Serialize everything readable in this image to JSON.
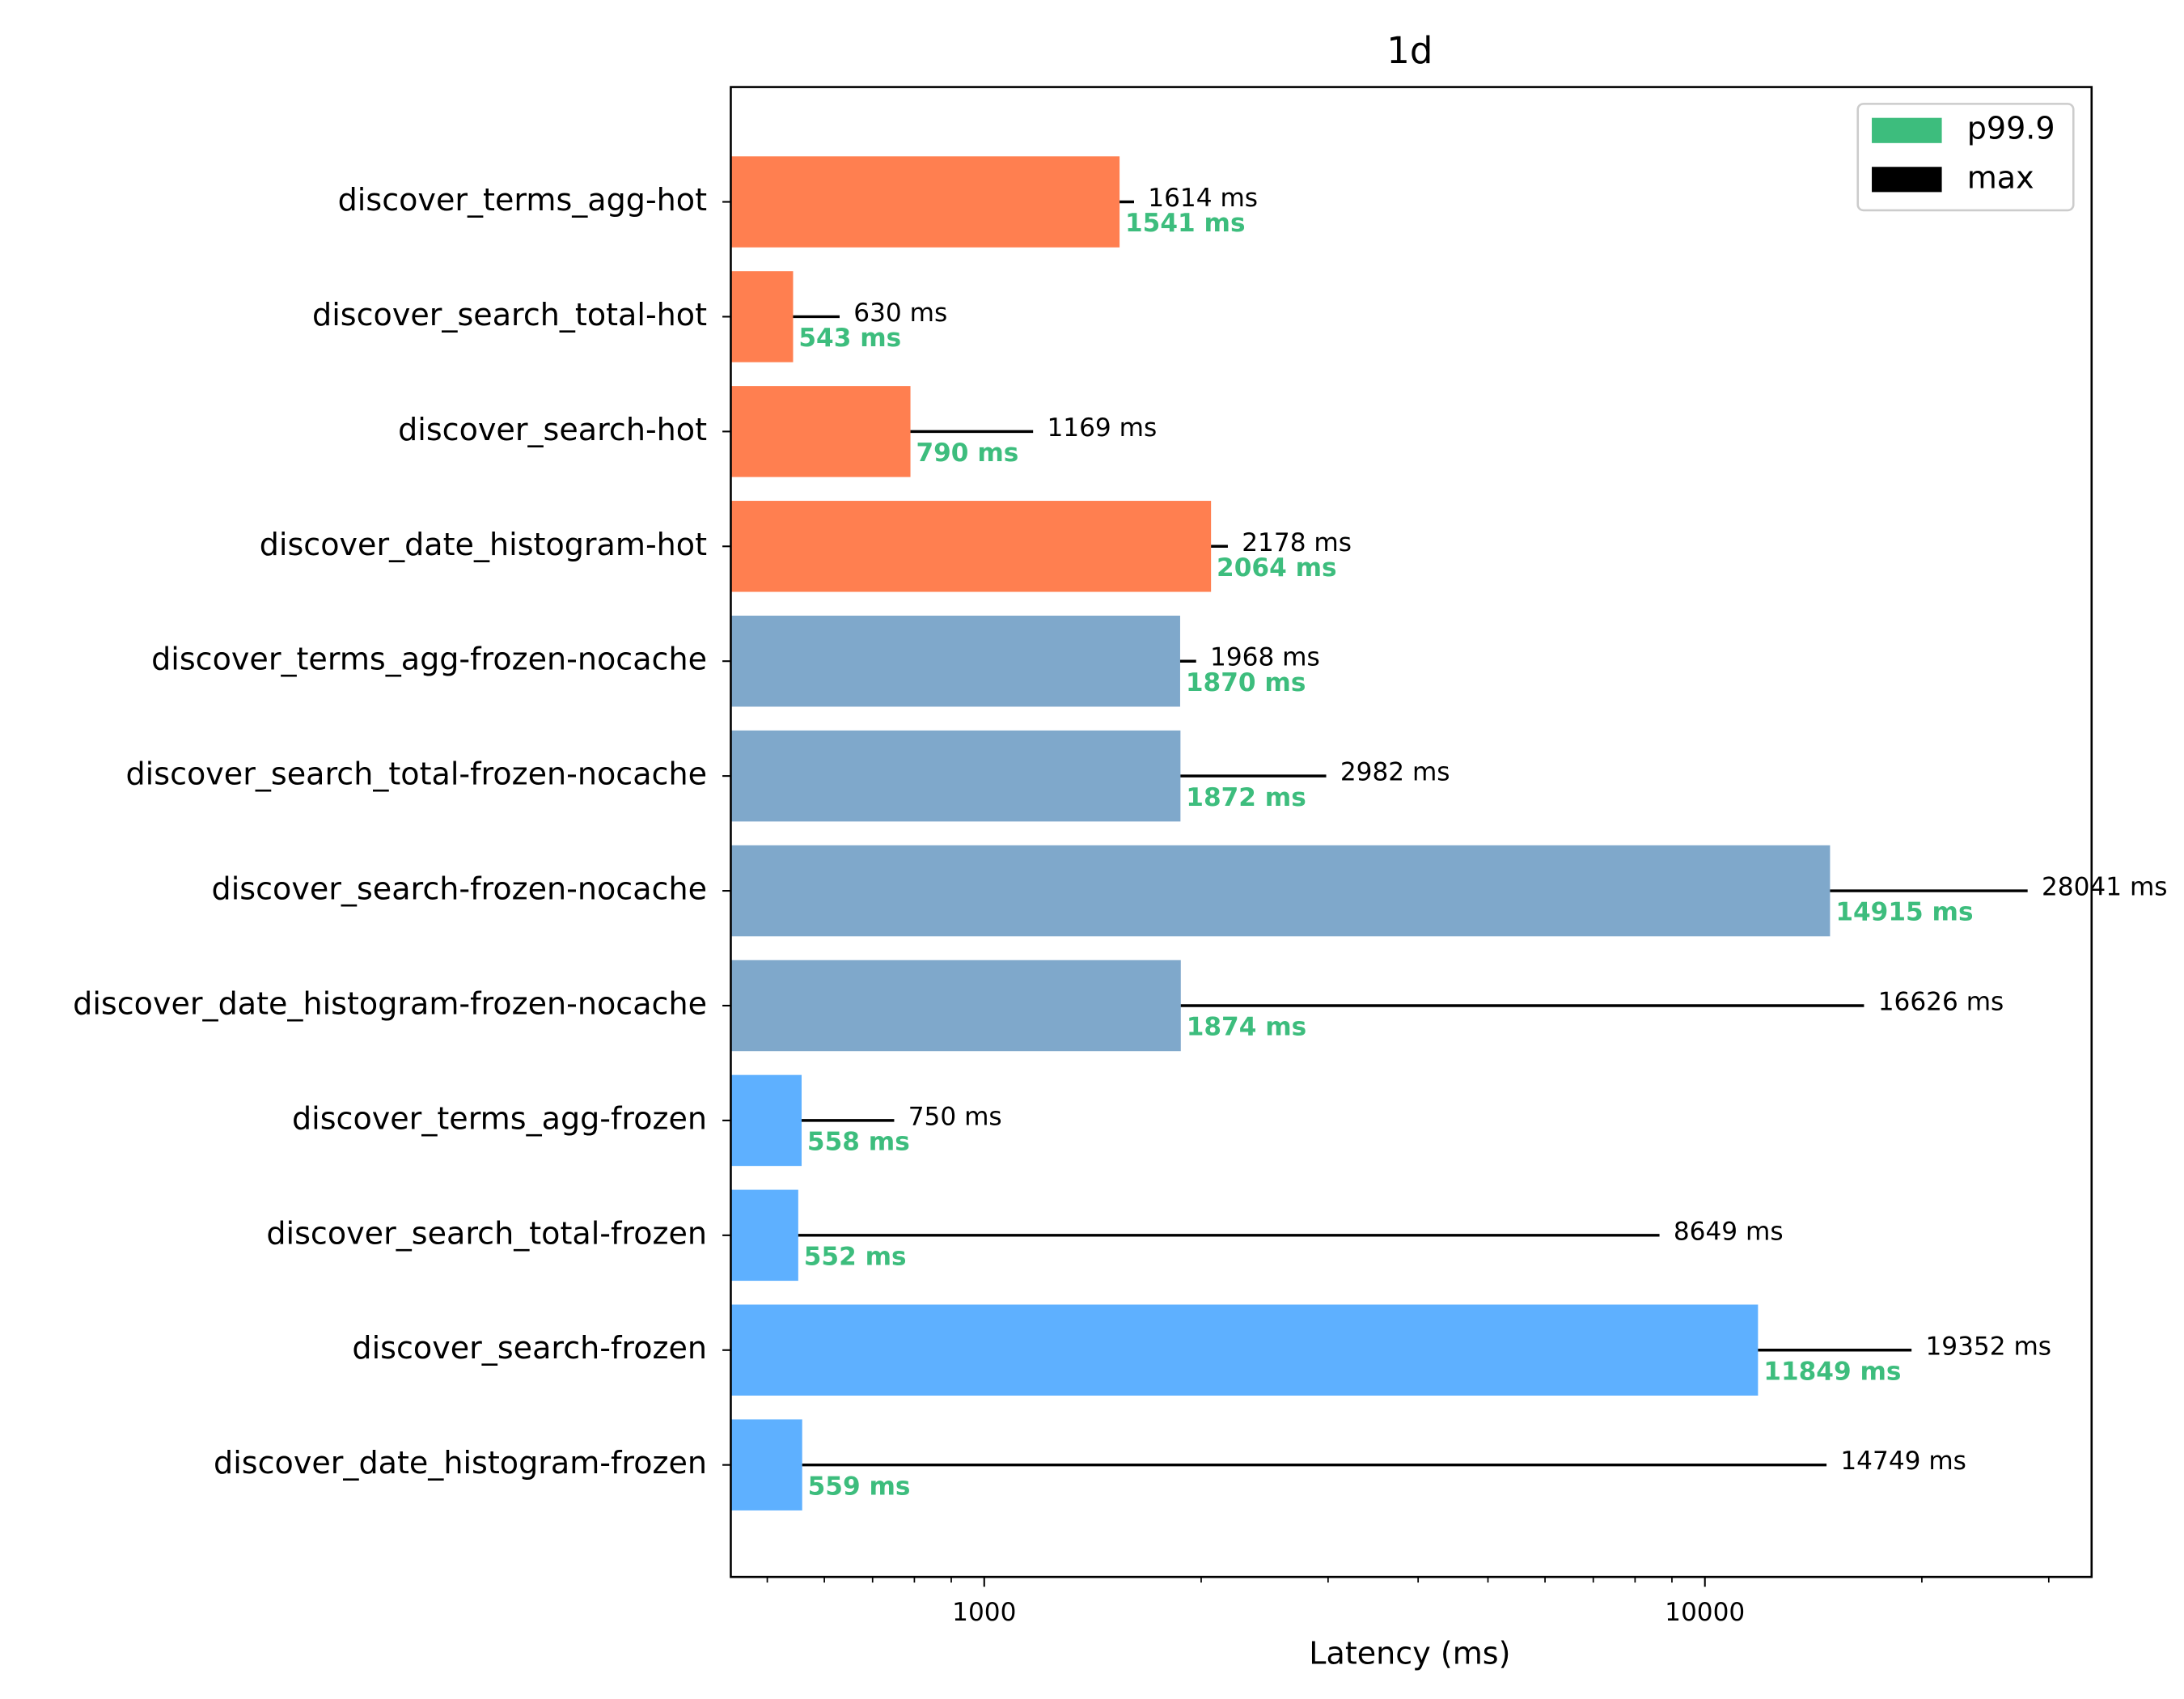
{
  "chart_data": {
    "type": "barh",
    "title": "1d",
    "xlabel": "Latency (ms)",
    "xscale": "log",
    "xlim": [
      445,
      34400
    ],
    "xticks": [
      1000,
      10000
    ],
    "minor_xticks": [
      500,
      600,
      700,
      800,
      900,
      2000,
      3000,
      4000,
      5000,
      6000,
      7000,
      8000,
      9000,
      20000,
      30000
    ],
    "legend_loc": "upper right",
    "categories": [
      "discover_terms_agg-hot",
      "discover_search_total-hot",
      "discover_search-hot",
      "discover_date_histogram-hot",
      "discover_terms_agg-frozen-nocache",
      "discover_search_total-frozen-nocache",
      "discover_search-frozen-nocache",
      "discover_date_histogram-frozen-nocache",
      "discover_terms_agg-frozen",
      "discover_search_total-frozen",
      "discover_search-frozen",
      "discover_date_histogram-frozen"
    ],
    "bar_colors": [
      "#ff7f50",
      "#ff7f50",
      "#ff7f50",
      "#ff7f50",
      "#7fa8cb",
      "#7fa8cb",
      "#7fa8cb",
      "#7fa8cb",
      "#5eb0ff",
      "#5eb0ff",
      "#5eb0ff",
      "#5eb0ff"
    ],
    "series": [
      {
        "name": "p99.9",
        "color": "#3dbd7d",
        "values": [
          1541,
          543,
          790,
          2064,
          1870,
          1872,
          14915,
          1874,
          558,
          552,
          11849,
          559
        ],
        "value_labels": [
          "1541 ms",
          "543 ms",
          "790 ms",
          "2064 ms",
          "1870 ms",
          "1872 ms",
          "14915 ms",
          "1874 ms",
          "558 ms",
          "552 ms",
          "11849 ms",
          "559 ms"
        ]
      },
      {
        "name": "max",
        "color": "#000000",
        "values": [
          1614,
          630,
          1169,
          2178,
          1968,
          2982,
          28041,
          16626,
          750,
          8649,
          19352,
          14749
        ],
        "value_labels": [
          "1614 ms",
          "630 ms",
          "1169 ms",
          "2178 ms",
          "1968 ms",
          "2982 ms",
          "28041 ms",
          "16626 ms",
          "750 ms",
          "8649 ms",
          "19352 ms",
          "14749 ms"
        ]
      }
    ]
  }
}
